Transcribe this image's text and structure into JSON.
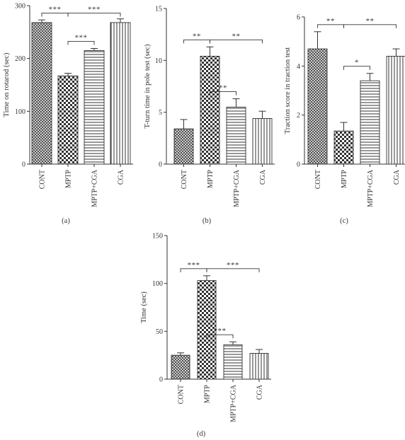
{
  "chart_data": [
    {
      "type": "bar",
      "panel_label": "(a)",
      "categories": [
        "CONT",
        "MPTP",
        "MPTP+CGA",
        "CGA"
      ],
      "values": [
        268,
        167,
        215,
        268
      ],
      "errors": [
        5,
        5,
        4,
        7
      ],
      "ylabel": "Time on rotarod (sec)",
      "ylim": [
        0,
        300
      ],
      "yticks": [
        0,
        100,
        200,
        300
      ],
      "patterns": [
        "crosshatch",
        "checker",
        "horizontal",
        "vertical"
      ],
      "significance": [
        {
          "from": 0,
          "to": 1,
          "label": "***"
        },
        {
          "from": 1,
          "to": 3,
          "label": "***"
        },
        {
          "from": 1,
          "to": 2,
          "label": "***"
        }
      ]
    },
    {
      "type": "bar",
      "panel_label": "(b)",
      "categories": [
        "CONT",
        "MPTP",
        "MPTP+CGA",
        "CGA"
      ],
      "values": [
        3.4,
        10.4,
        5.5,
        4.4
      ],
      "errors": [
        0.9,
        0.9,
        0.8,
        0.7
      ],
      "ylabel": "T-turn time in pole test (sec)",
      "ylim": [
        0,
        15
      ],
      "yticks": [
        0,
        5,
        10,
        15
      ],
      "patterns": [
        "crosshatch",
        "checker",
        "horizontal",
        "vertical"
      ],
      "significance": [
        {
          "from": 0,
          "to": 1,
          "label": "**"
        },
        {
          "from": 1,
          "to": 3,
          "label": "**"
        },
        {
          "from": 1,
          "to": 2,
          "label": "**"
        }
      ]
    },
    {
      "type": "bar",
      "panel_label": "(c)",
      "categories": [
        "CONT",
        "MPTP",
        "MPTP+CGA",
        "CGA"
      ],
      "values": [
        4.7,
        1.35,
        3.4,
        4.4
      ],
      "errors": [
        0.7,
        0.35,
        0.3,
        0.3
      ],
      "ylabel": "Traction score in traction test",
      "ylim": [
        0,
        6
      ],
      "yticks": [
        0,
        2,
        4,
        6
      ],
      "patterns": [
        "crosshatch",
        "checker",
        "horizontal",
        "vertical"
      ],
      "significance": [
        {
          "from": 0,
          "to": 1,
          "label": "**"
        },
        {
          "from": 1,
          "to": 3,
          "label": "**"
        },
        {
          "from": 1,
          "to": 2,
          "label": "*"
        }
      ]
    },
    {
      "type": "bar",
      "panel_label": "(d)",
      "categories": [
        "CONT",
        "MPTP",
        "MPTP+CGA",
        "CGA"
      ],
      "values": [
        25,
        103,
        36,
        27
      ],
      "errors": [
        2.5,
        5,
        3,
        4
      ],
      "ylabel": "Time (sec)",
      "ylim": [
        0,
        150
      ],
      "yticks": [
        0,
        50,
        100,
        150
      ],
      "patterns": [
        "crosshatch",
        "checker",
        "horizontal",
        "vertical"
      ],
      "significance": [
        {
          "from": 0,
          "to": 1,
          "label": "***"
        },
        {
          "from": 1,
          "to": 3,
          "label": "***"
        },
        {
          "from": 1,
          "to": 2,
          "label": "***"
        }
      ]
    }
  ]
}
